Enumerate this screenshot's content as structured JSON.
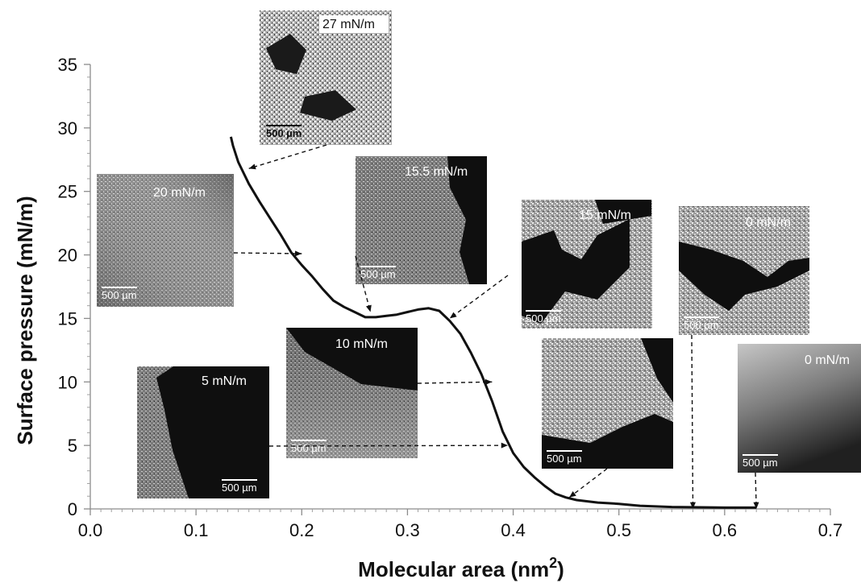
{
  "chart_data": {
    "type": "line",
    "xlabel": "Molecular area (nm",
    "xlabel_sup": "2",
    "xlabel_close": ")",
    "ylabel": "Surface pressure (mN/m)",
    "xlim": [
      0.0,
      0.7
    ],
    "ylim": [
      0,
      35
    ],
    "x_ticks": [
      "0.0",
      "0.1",
      "0.2",
      "0.3",
      "0.4",
      "0.5",
      "0.6",
      "0.7"
    ],
    "y_ticks": [
      "0",
      "5",
      "10",
      "15",
      "20",
      "25",
      "30",
      "35"
    ],
    "grid": false,
    "series": [
      {
        "x": [
          0.133,
          0.135,
          0.14,
          0.15,
          0.16,
          0.17,
          0.18,
          0.19,
          0.2,
          0.21,
          0.22,
          0.23,
          0.24,
          0.25,
          0.26,
          0.27,
          0.28,
          0.29,
          0.3,
          0.31,
          0.32,
          0.33,
          0.34,
          0.35,
          0.36,
          0.37,
          0.38,
          0.39,
          0.4,
          0.41,
          0.42,
          0.43,
          0.44,
          0.45,
          0.46,
          0.48,
          0.5,
          0.52,
          0.55,
          0.6,
          0.63
        ],
        "y": [
          29.3,
          28.6,
          27.3,
          25.6,
          24.2,
          22.9,
          21.6,
          20.2,
          19.2,
          18.3,
          17.3,
          16.4,
          15.9,
          15.5,
          15.1,
          15.1,
          15.2,
          15.3,
          15.5,
          15.7,
          15.8,
          15.6,
          14.8,
          13.8,
          12.3,
          10.6,
          8.5,
          6.1,
          4.4,
          3.3,
          2.5,
          1.8,
          1.2,
          0.9,
          0.7,
          0.5,
          0.4,
          0.25,
          0.15,
          0.1,
          0.1
        ]
      }
    ],
    "insets": [
      {
        "label": "27 mN/m",
        "scale": "500 µm",
        "target": [
          0.15,
          26.8
        ]
      },
      {
        "label": "20 mN/m",
        "scale": "500 µm",
        "target": [
          0.2,
          20.1
        ]
      },
      {
        "label": "15.5 mN/m",
        "scale": "500 µm",
        "target": [
          0.265,
          15.5
        ]
      },
      {
        "label": "15 mN/m",
        "scale": "500 µm",
        "target": [
          0.34,
          15.0
        ]
      },
      {
        "label": "10 mN/m",
        "scale": "500 µm",
        "target": [
          0.38,
          10.0
        ]
      },
      {
        "label": "5 mN/m",
        "scale": "500 µm",
        "target": [
          0.395,
          5.0
        ]
      },
      {
        "label": "0 mN/m",
        "scale": "500 µm",
        "target": [
          0.453,
          0.9
        ]
      },
      {
        "label": "0 mN/m",
        "scale": "500 µm",
        "target": [
          0.57,
          0.0
        ]
      },
      {
        "label": "0 mN/m",
        "scale": "500 µm",
        "target": [
          0.63,
          0.0
        ]
      }
    ]
  }
}
